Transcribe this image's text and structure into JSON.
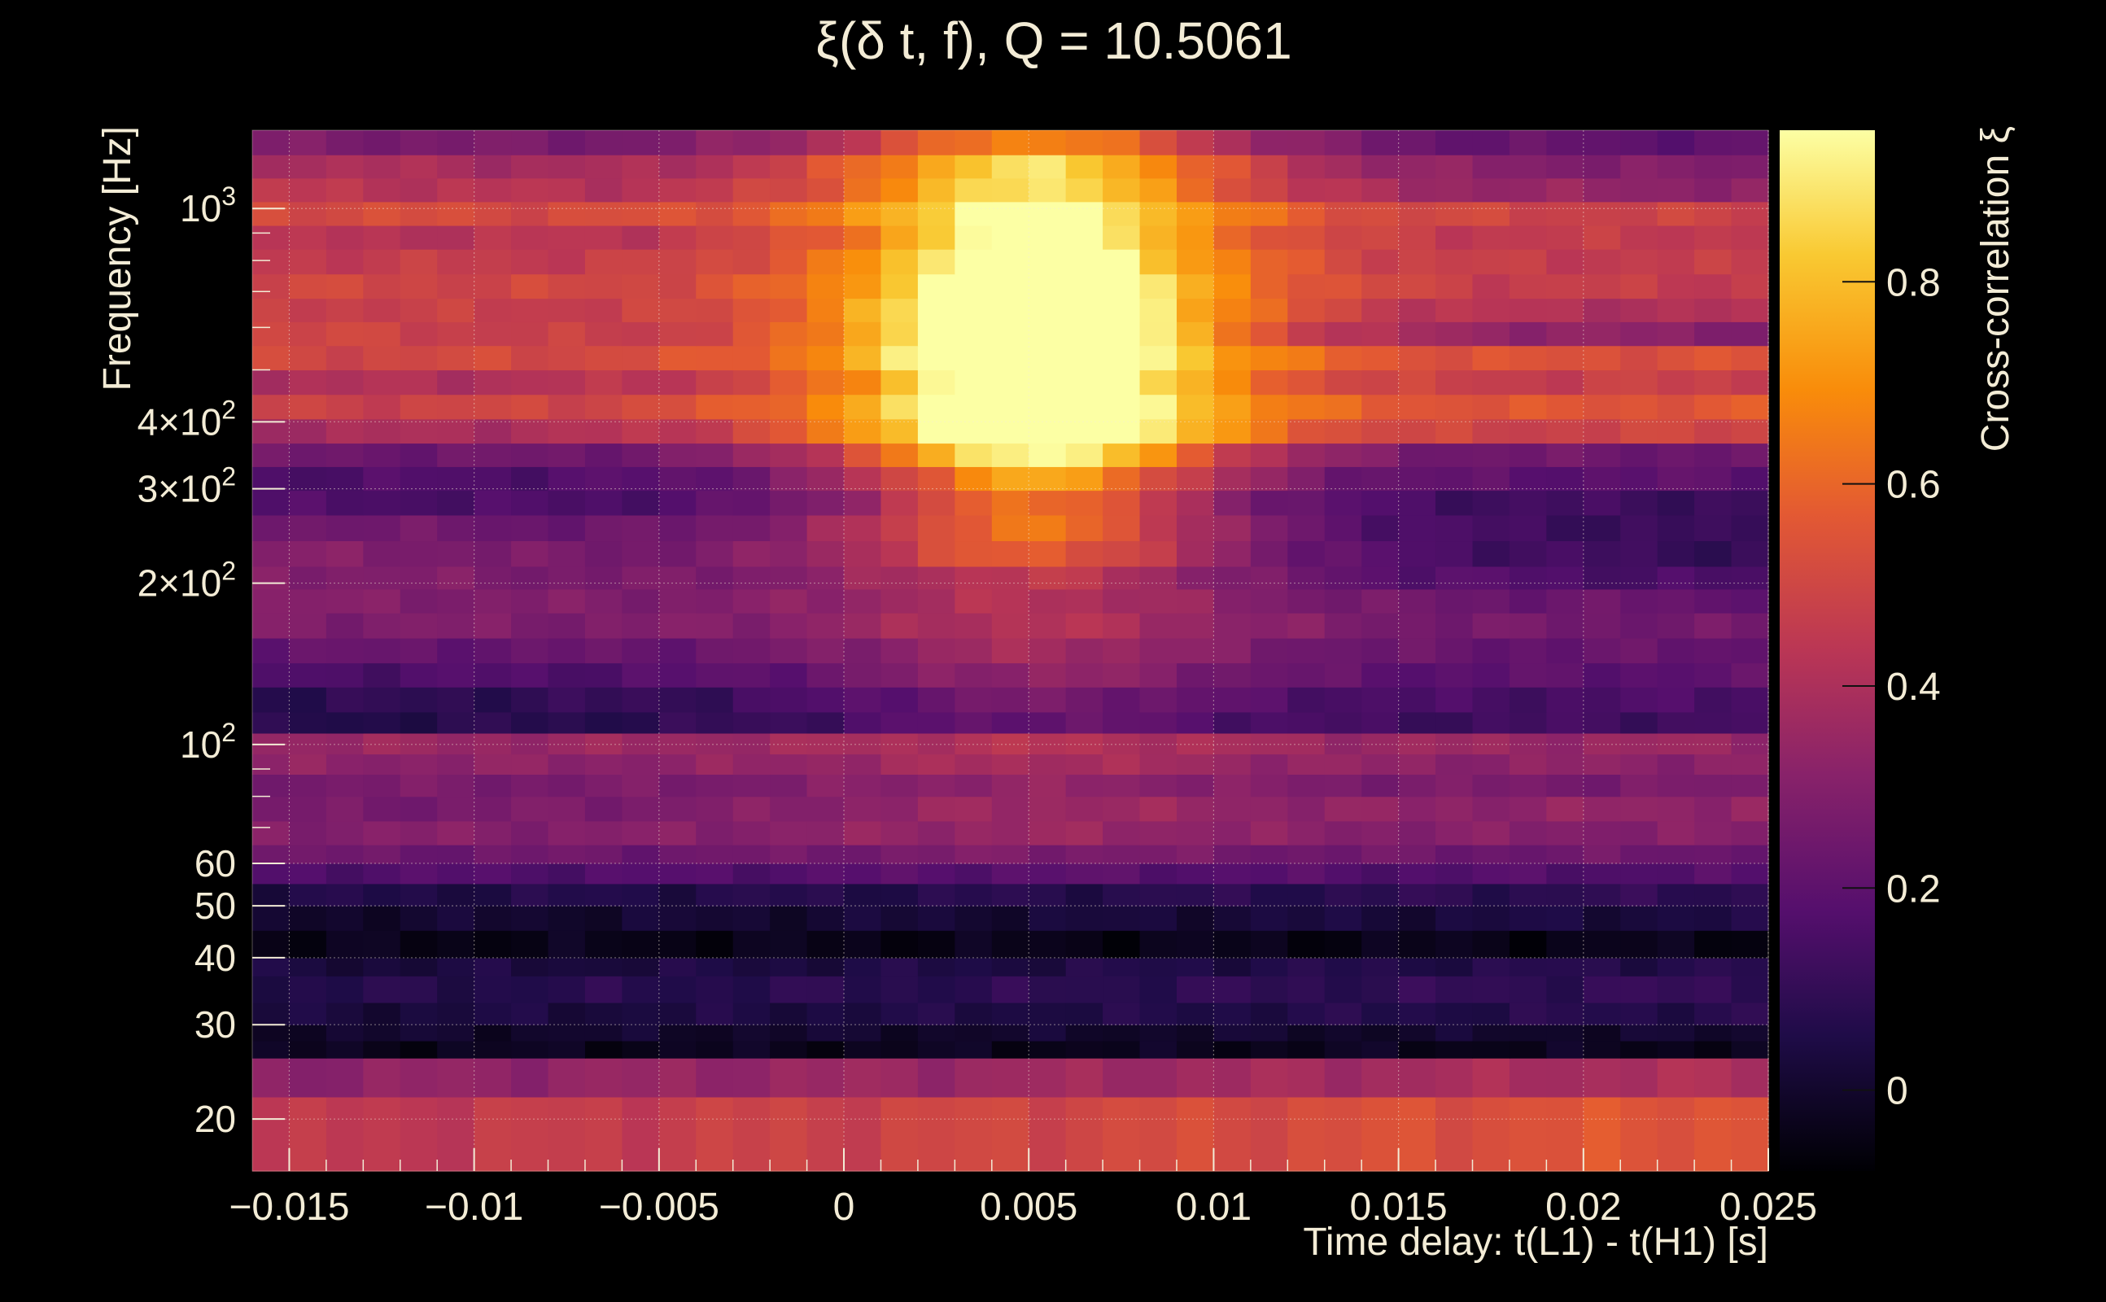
{
  "chart_data": {
    "type": "heatmap",
    "title": "ξ(δ t, f), Q = 10.5061",
    "xlabel": "Time delay: t(L1) - t(H1) [s]",
    "ylabel": "Frequency [Hz]",
    "colorbar_label": "Cross-correlation ξ",
    "xlim": [
      -0.016,
      0.025
    ],
    "ylim": [
      16,
      1400
    ],
    "yscale": "log",
    "zlim": [
      -0.08,
      0.95
    ],
    "grid": true,
    "colormap": "inferno",
    "x_ticks": [
      {
        "value": -0.015,
        "label": "−0.015"
      },
      {
        "value": -0.01,
        "label": "−0.01"
      },
      {
        "value": -0.005,
        "label": "−0.005"
      },
      {
        "value": 0,
        "label": "0"
      },
      {
        "value": 0.005,
        "label": "0.005"
      },
      {
        "value": 0.01,
        "label": "0.01"
      },
      {
        "value": 0.015,
        "label": "0.015"
      },
      {
        "value": 0.02,
        "label": "0.02"
      },
      {
        "value": 0.025,
        "label": "0.025"
      }
    ],
    "y_ticks": [
      {
        "value": 20,
        "label": "20"
      },
      {
        "value": 30,
        "label": "30"
      },
      {
        "value": 40,
        "label": "40"
      },
      {
        "value": 50,
        "label": "50"
      },
      {
        "value": 60,
        "label": "60"
      },
      {
        "value": 100,
        "label": "10",
        "sup": "2"
      },
      {
        "value": 200,
        "label": "2×10",
        "sup": "2"
      },
      {
        "value": 300,
        "label": "3×10",
        "sup": "2"
      },
      {
        "value": 400,
        "label": "4×10",
        "sup": "2"
      },
      {
        "value": 1000,
        "label": "10",
        "sup": "3"
      }
    ],
    "colorbar_ticks": [
      {
        "value": 0,
        "label": "0"
      },
      {
        "value": 0.2,
        "label": "0.2"
      },
      {
        "value": 0.4,
        "label": "0.4"
      },
      {
        "value": 0.6,
        "label": "0.6"
      },
      {
        "value": 0.8,
        "label": "0.8"
      }
    ],
    "n_time_bins": 41,
    "rows": [
      {
        "f_low": 16,
        "f_high": 22,
        "base": 0.5,
        "peak": 0.0,
        "gradient": 0.06
      },
      {
        "f_low": 22,
        "f_high": 26,
        "base": 0.36,
        "peak": 0.0,
        "gradient": 0.04
      },
      {
        "f_low": 26,
        "f_high": 28,
        "base": -0.03,
        "peak": 0.0,
        "gradient": 0.0
      },
      {
        "f_low": 28,
        "f_high": 30,
        "base": 0.0,
        "peak": 0.0,
        "gradient": 0.0
      },
      {
        "f_low": 30,
        "f_high": 33,
        "base": 0.05,
        "peak": 0.0,
        "gradient": 0.02
      },
      {
        "f_low": 33,
        "f_high": 37,
        "base": 0.08,
        "peak": 0.0,
        "gradient": 0.02
      },
      {
        "f_low": 37,
        "f_high": 40,
        "base": 0.05,
        "peak": 0.0,
        "gradient": 0.02
      },
      {
        "f_low": 40,
        "f_high": 45,
        "base": -0.04,
        "peak": 0.0,
        "gradient": 0.0
      },
      {
        "f_low": 45,
        "f_high": 50,
        "base": 0.02,
        "peak": 0.0,
        "gradient": 0.02
      },
      {
        "f_low": 50,
        "f_high": 55,
        "base": 0.07,
        "peak": 0.0,
        "gradient": 0.02
      },
      {
        "f_low": 55,
        "f_high": 60,
        "base": 0.17,
        "peak": 0.02,
        "gradient": 0.0
      },
      {
        "f_low": 60,
        "f_high": 65,
        "base": 0.24,
        "peak": 0.04,
        "gradient": 0.0
      },
      {
        "f_low": 65,
        "f_high": 72,
        "base": 0.3,
        "peak": 0.05,
        "gradient": 0.0
      },
      {
        "f_low": 72,
        "f_high": 80,
        "base": 0.3,
        "peak": 0.06,
        "gradient": 0.04
      },
      {
        "f_low": 80,
        "f_high": 88,
        "base": 0.27,
        "peak": 0.06,
        "gradient": 0.0
      },
      {
        "f_low": 88,
        "f_high": 96,
        "base": 0.32,
        "peak": 0.07,
        "gradient": 0.0
      },
      {
        "f_low": 96,
        "f_high": 105,
        "base": 0.35,
        "peak": 0.07,
        "gradient": 0.0
      },
      {
        "f_low": 105,
        "f_high": 115,
        "base": 0.1,
        "peak": 0.12,
        "gradient": 0.04
      },
      {
        "f_low": 115,
        "f_high": 128,
        "base": 0.12,
        "peak": 0.14,
        "gradient": 0.04
      },
      {
        "f_low": 128,
        "f_high": 142,
        "base": 0.18,
        "peak": 0.15,
        "gradient": 0.02
      },
      {
        "f_low": 142,
        "f_high": 158,
        "base": 0.22,
        "peak": 0.15,
        "gradient": 0.0
      },
      {
        "f_low": 158,
        "f_high": 176,
        "base": 0.27,
        "peak": 0.14,
        "gradient": -0.02
      },
      {
        "f_low": 176,
        "f_high": 195,
        "base": 0.26,
        "peak": 0.14,
        "gradient": -0.04
      },
      {
        "f_low": 195,
        "f_high": 215,
        "base": 0.22,
        "peak": 0.2,
        "gradient": -0.08
      },
      {
        "f_low": 215,
        "f_high": 240,
        "base": 0.2,
        "peak": 0.33,
        "gradient": -0.1
      },
      {
        "f_low": 240,
        "f_high": 268,
        "base": 0.18,
        "peak": 0.38,
        "gradient": -0.08
      },
      {
        "f_low": 268,
        "f_high": 298,
        "base": 0.14,
        "peak": 0.38,
        "gradient": -0.02
      },
      {
        "f_low": 298,
        "f_high": 330,
        "base": 0.18,
        "peak": 0.42,
        "gradient": 0.02
      },
      {
        "f_low": 330,
        "f_high": 365,
        "base": 0.24,
        "peak": 0.52,
        "gradient": 0.0
      },
      {
        "f_low": 365,
        "f_high": 405,
        "base": 0.44,
        "peak": 0.5,
        "gradient": 0.06
      },
      {
        "f_low": 405,
        "f_high": 450,
        "base": 0.52,
        "peak": 0.42,
        "gradient": 0.04
      },
      {
        "f_low": 450,
        "f_high": 500,
        "base": 0.44,
        "peak": 0.44,
        "gradient": 0.04
      },
      {
        "f_low": 500,
        "f_high": 555,
        "base": 0.52,
        "peak": 0.42,
        "gradient": 0.02
      },
      {
        "f_low": 555,
        "f_high": 615,
        "base": 0.4,
        "peak": 0.55,
        "gradient": -0.1
      },
      {
        "f_low": 615,
        "f_high": 680,
        "base": 0.44,
        "peak": 0.5,
        "gradient": -0.04
      },
      {
        "f_low": 680,
        "f_high": 755,
        "base": 0.48,
        "peak": 0.42,
        "gradient": -0.02
      },
      {
        "f_low": 755,
        "f_high": 840,
        "base": 0.46,
        "peak": 0.4,
        "gradient": 0.0
      },
      {
        "f_low": 840,
        "f_high": 930,
        "base": 0.44,
        "peak": 0.36,
        "gradient": 0.02
      },
      {
        "f_low": 930,
        "f_high": 1030,
        "base": 0.5,
        "peak": 0.35,
        "gradient": -0.02
      },
      {
        "f_low": 1030,
        "f_high": 1140,
        "base": 0.38,
        "peak": 0.4,
        "gradient": -0.06
      },
      {
        "f_low": 1140,
        "f_high": 1260,
        "base": 0.34,
        "peak": 0.45,
        "gradient": -0.06
      },
      {
        "f_low": 1260,
        "f_high": 1400,
        "base": 0.24,
        "peak": 0.38,
        "gradient": -0.04
      }
    ],
    "hotspot": {
      "t_center": 0.0052,
      "f_center": 560,
      "amplitude": 0.34,
      "t_width": 0.0022,
      "logf_width": 0.2
    }
  }
}
